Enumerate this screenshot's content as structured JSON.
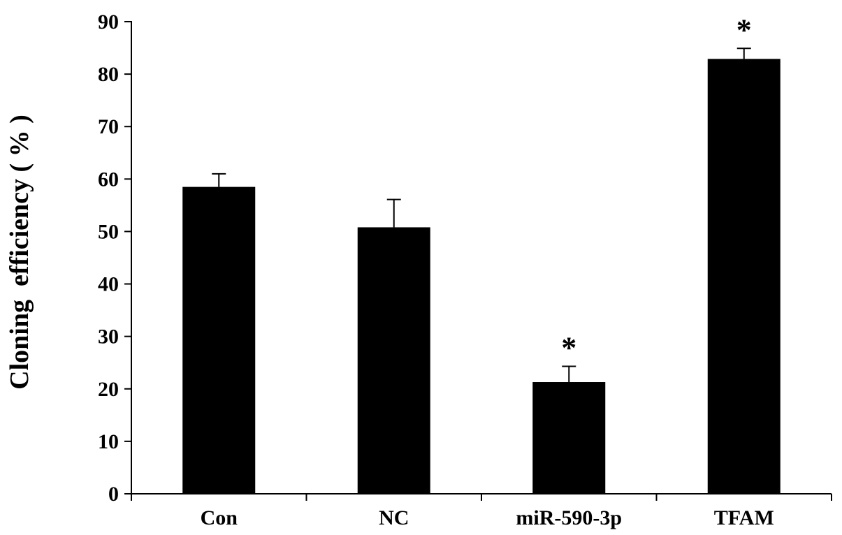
{
  "chart_data": {
    "type": "bar",
    "categories": [
      "Con",
      "NC",
      "miR-590-3p",
      "TFAM"
    ],
    "values": [
      58.5,
      50.8,
      21.3,
      82.9
    ],
    "error_bars": [
      2.5,
      5.3,
      3.0,
      2.0
    ],
    "significance": [
      "",
      "",
      "*",
      "*"
    ],
    "ylabel": "Cloning  efficiency ( % )",
    "ylim": [
      0,
      90
    ],
    "yticks": [
      0,
      10,
      20,
      30,
      40,
      50,
      60,
      70,
      80,
      90
    ],
    "bar_color": "#000000",
    "grid": false,
    "legend": "none"
  }
}
